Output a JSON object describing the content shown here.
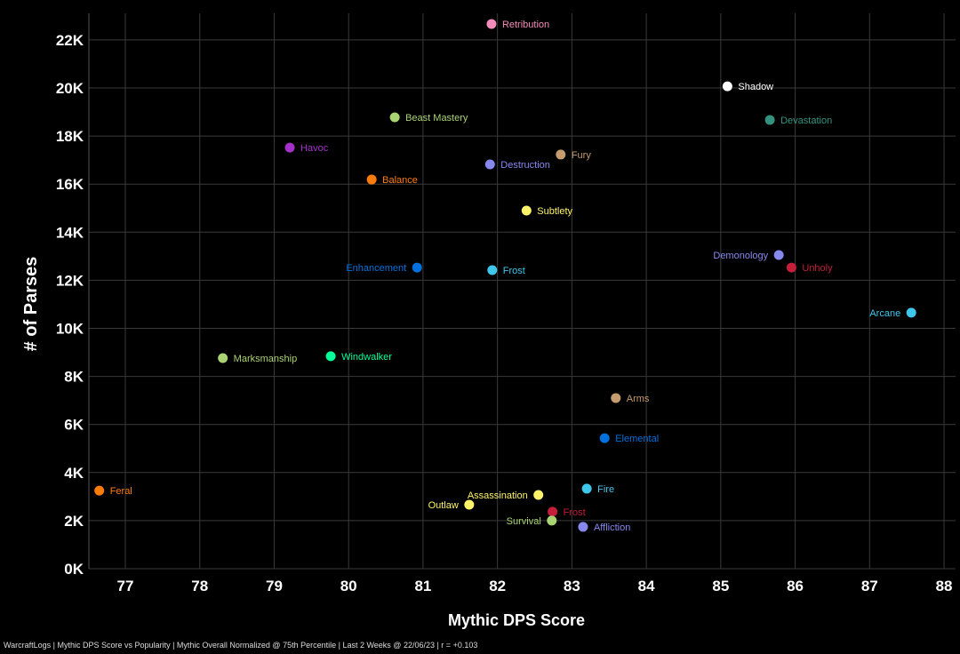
{
  "chart_data": {
    "type": "scatter",
    "xlabel": "Mythic DPS Score",
    "ylabel": "# of Parses",
    "xlim": [
      76.6,
      88
    ],
    "ylim": [
      0,
      22800
    ],
    "x_ticks": [
      77,
      78,
      79,
      80,
      81,
      82,
      83,
      84,
      85,
      86,
      87,
      88
    ],
    "y_ticks": [
      0,
      2000,
      4000,
      6000,
      8000,
      10000,
      12000,
      14000,
      16000,
      18000,
      20000,
      22000
    ],
    "y_tick_labels": [
      "0K",
      "2K",
      "4K",
      "6K",
      "8K",
      "10K",
      "12K",
      "14K",
      "16K",
      "18K",
      "20K",
      "22K"
    ],
    "grid": true,
    "points": [
      {
        "label": "Retribution",
        "x": 81.92,
        "y": 22660,
        "color": "#f48cba"
      },
      {
        "label": "Shadow",
        "x": 85.09,
        "y": 20070,
        "color": "#ffffff"
      },
      {
        "label": "Devastation",
        "x": 85.66,
        "y": 18670,
        "color": "#33937f"
      },
      {
        "label": "Beast Mastery",
        "x": 80.62,
        "y": 18780,
        "color": "#aad372"
      },
      {
        "label": "Havoc",
        "x": 79.21,
        "y": 17520,
        "color": "#a330c9"
      },
      {
        "label": "Fury",
        "x": 82.85,
        "y": 17230,
        "color": "#c69b6d"
      },
      {
        "label": "Destruction",
        "x": 81.9,
        "y": 16820,
        "color": "#8788ee"
      },
      {
        "label": "Balance",
        "x": 80.31,
        "y": 16190,
        "color": "#ff7c0a"
      },
      {
        "label": "Subtlety",
        "x": 82.39,
        "y": 14900,
        "color": "#fff468"
      },
      {
        "label": "Demonology",
        "x": 85.78,
        "y": 13050,
        "color": "#8788ee"
      },
      {
        "label": "Unholy",
        "x": 85.95,
        "y": 12530,
        "color": "#c41e3a"
      },
      {
        "label": "Enhancement",
        "x": 80.92,
        "y": 12530,
        "color": "#0070dd"
      },
      {
        "label": "Frost",
        "x": 81.93,
        "y": 12420,
        "color": "#3fc7eb"
      },
      {
        "label": "Arcane",
        "x": 87.56,
        "y": 10650,
        "color": "#3fc7eb"
      },
      {
        "label": "Marksmanship",
        "x": 78.31,
        "y": 8760,
        "color": "#aad372"
      },
      {
        "label": "Windwalker",
        "x": 79.76,
        "y": 8840,
        "color": "#00ff98"
      },
      {
        "label": "Arms",
        "x": 83.59,
        "y": 7100,
        "color": "#c69b6d"
      },
      {
        "label": "Elemental",
        "x": 83.44,
        "y": 5430,
        "color": "#0070dd"
      },
      {
        "label": "Feral",
        "x": 76.65,
        "y": 3250,
        "color": "#ff7c0a"
      },
      {
        "label": "Fire",
        "x": 83.2,
        "y": 3330,
        "color": "#3fc7eb"
      },
      {
        "label": "Assassination",
        "x": 82.55,
        "y": 3070,
        "color": "#fff468"
      },
      {
        "label": "Outlaw",
        "x": 81.62,
        "y": 2660,
        "color": "#fff468"
      },
      {
        "label": "Frost",
        "x": 82.74,
        "y": 2370,
        "color": "#c41e3a"
      },
      {
        "label": "Survival",
        "x": 82.73,
        "y": 2000,
        "color": "#aad372"
      },
      {
        "label": "Affliction",
        "x": 83.15,
        "y": 1740,
        "color": "#8788ee"
      }
    ]
  },
  "footer": "WarcraftLogs | Mythic DPS Score vs Popularity | Mythic Overall Normalized @ 75th Percentile | Last 2 Weeks @ 22/06/23 | r = +0.103"
}
